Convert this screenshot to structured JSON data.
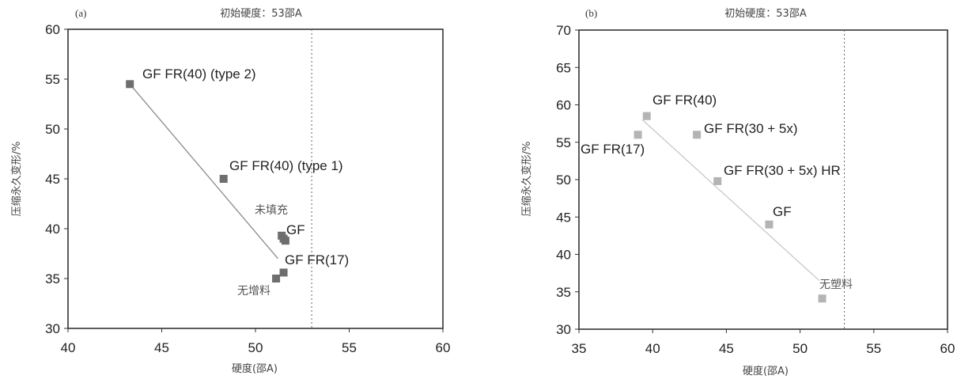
{
  "chart_data": [
    {
      "type": "scatter",
      "panel_label": "(a)",
      "title": "初始硬度：53邵A",
      "xlabel": "硬度(邵A)",
      "ylabel": "压缩永久变形/%",
      "xlim": [
        40,
        60
      ],
      "ylim": [
        30,
        60
      ],
      "xticks": [
        "40",
        "45",
        "50",
        "55",
        "60"
      ],
      "yticks": [
        "30",
        "35",
        "40",
        "45",
        "50",
        "55",
        "60"
      ],
      "grid": false,
      "reference_line_x": 53,
      "marker_color": "#6e6e6e",
      "line_color": "#8a8a8a",
      "trend_line": {
        "from": [
          43.3,
          54.5
        ],
        "to": [
          51.2,
          37.0
        ]
      },
      "points": [
        {
          "label": "GF FR(40) (type 2)",
          "x": 43.3,
          "y": 54.5
        },
        {
          "label": "GF FR(40) (type 1)",
          "x": 48.3,
          "y": 45.0
        },
        {
          "label": "未填充",
          "x": 51.4,
          "y": 39.3
        },
        {
          "label": "",
          "x": 51.6,
          "y": 38.8
        },
        {
          "label": "GF",
          "x": 51.5,
          "y": 39.0
        },
        {
          "label": "GF FR(17)",
          "x": 51.5,
          "y": 35.6
        },
        {
          "label": "无增料",
          "x": 51.1,
          "y": 35.0
        }
      ]
    },
    {
      "type": "scatter",
      "panel_label": "(b)",
      "title": "初始硬度：53邵A",
      "xlabel": "硬度(邵A)",
      "ylabel": "压缩永久变形/%",
      "xlim": [
        35,
        60
      ],
      "ylim": [
        30,
        70
      ],
      "xticks": [
        "35",
        "40",
        "45",
        "50",
        "55",
        "60"
      ],
      "yticks": [
        "30",
        "35",
        "40",
        "45",
        "50",
        "55",
        "60",
        "65",
        "70"
      ],
      "grid": false,
      "reference_line_x": 53,
      "marker_color": "#b4b4b4",
      "line_color": "#c8c8c8",
      "trend_line": {
        "from": [
          39.3,
          58.0
        ],
        "to": [
          51.3,
          36.5
        ]
      },
      "points": [
        {
          "label": "GF FR(40)",
          "x": 39.6,
          "y": 58.5
        },
        {
          "label": "GF FR(17)",
          "x": 39.0,
          "y": 56.0
        },
        {
          "label": "GF FR(30 + 5x)",
          "x": 43.0,
          "y": 56.0
        },
        {
          "label": "GF FR(30 + 5x) HR",
          "x": 44.4,
          "y": 49.8
        },
        {
          "label": "GF",
          "x": 47.9,
          "y": 44.0
        },
        {
          "label": "无塑料",
          "x": 51.5,
          "y": 34.1
        }
      ]
    }
  ]
}
